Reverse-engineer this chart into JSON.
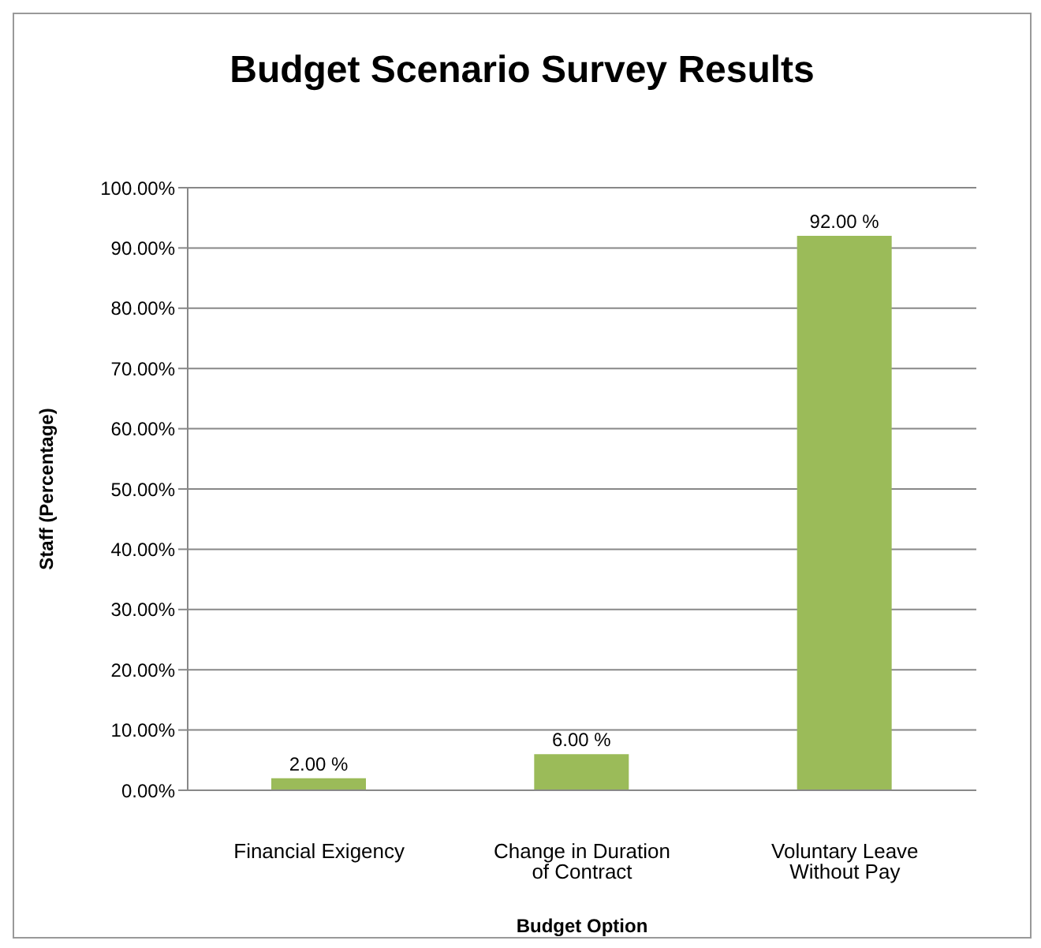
{
  "chart_data": {
    "type": "bar",
    "title": "Budget Scenario Survey Results",
    "xlabel": "Budget Option",
    "ylabel": "Staff (Percentage)",
    "categories": [
      "Financial Exigency",
      "Change in Duration of Contract",
      "Voluntary Leave Without Pay"
    ],
    "values": [
      2,
      6,
      92
    ],
    "color": "#9bbb59",
    "value_labels": [
      "2.00 %",
      "6.00 %",
      "92.00 %"
    ],
    "ylim": [
      0,
      100
    ],
    "yticks": [
      {
        "value": 0,
        "label": "0.00%"
      },
      {
        "value": 10,
        "label": "10.00%"
      },
      {
        "value": 20,
        "label": "20.00%"
      },
      {
        "value": 30,
        "label": "30.00%"
      },
      {
        "value": 40,
        "label": "40.00%"
      },
      {
        "value": 50,
        "label": "50.00%"
      },
      {
        "value": 60,
        "label": "60.00%"
      },
      {
        "value": 70,
        "label": "70.00%"
      },
      {
        "value": 80,
        "label": "80.00%"
      },
      {
        "value": 90,
        "label": "90.00%"
      },
      {
        "value": 100,
        "label": "100.00%"
      }
    ],
    "grid": "y"
  }
}
